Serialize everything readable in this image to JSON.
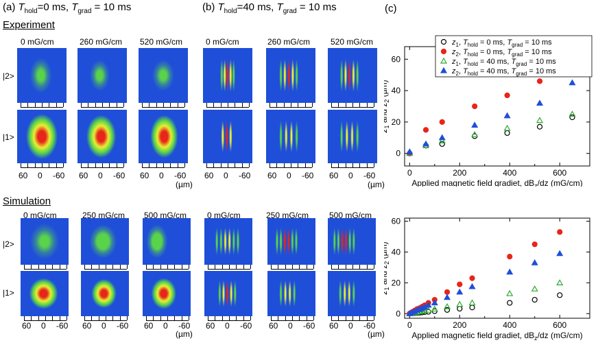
{
  "labels": {
    "panel_a_prefix": "(a) ",
    "panel_a_thold": "=0 ms, ",
    "panel_a_tgrad": " = 10 ms",
    "panel_b_prefix": "(b) ",
    "panel_b_thold": "=40 ms, ",
    "panel_b_tgrad": " = 10 ms",
    "panel_c": "(c)",
    "T": "T",
    "sub_hold": "hold",
    "sub_grad": "grad",
    "experiment": "Experiment",
    "simulation": "Simulation",
    "state_2": "|2>",
    "state_1": "|1>",
    "um": "(µm)",
    "x_ticks": [
      "60",
      "0",
      "-60"
    ]
  },
  "experiment_fields_a": [
    "0 mG/cm",
    "260 mG/cm",
    "520 mG/cm"
  ],
  "experiment_fields_b": [
    "0 mG/cm",
    "260 mG/cm",
    "520 mG/cm"
  ],
  "simulation_fields_a": [
    "0 mG/cm",
    "250 mG/cm",
    "500 mG/cm"
  ],
  "simulation_fields_b": [
    "0 mG/cm",
    "250 mG/cm",
    "500 mG/cm"
  ],
  "colors": {
    "background_blue": "#1f4fd8",
    "green": "#59d34a",
    "yellow": "#e8ee33",
    "red": "#e8251a",
    "series_red": "#e8251a",
    "series_blue": "#1f4fd8",
    "series_green": "#2faa2f",
    "series_black": "#000000"
  },
  "chart_data": [
    {
      "type": "scatter",
      "title": "Experiment",
      "xlabel": "Applied magnetic field gradiet, dB",
      "xlabel_sub": "z",
      "xlabel_tail": "/dz (mG/cm)",
      "ylabel": "z",
      "ylabel_sub1": "1",
      "ylabel_mid": " and z",
      "ylabel_sub2": "2",
      "ylabel_tail": " (µm)",
      "xlim": [
        -20,
        720
      ],
      "ylim": [
        -8,
        68
      ],
      "xticks": [
        0,
        200,
        400,
        600
      ],
      "yticks": [
        0,
        20,
        40,
        60
      ],
      "legend_position": "top-right",
      "series": [
        {
          "name": "z1, Thold = 0 ms, Tgrad = 10 ms",
          "marker": "circle-open",
          "color": "#000000",
          "x": [
            0,
            65,
            130,
            260,
            390,
            520,
            650
          ],
          "y": [
            0,
            5,
            6,
            11,
            13,
            17,
            23
          ]
        },
        {
          "name": "z2, Thold = 0 ms, Tgrad = 10 ms",
          "marker": "circle-filled",
          "color": "#e8251a",
          "x": [
            0,
            65,
            130,
            260,
            390,
            520,
            650
          ],
          "y": [
            0,
            15,
            20,
            30,
            37,
            46,
            51
          ]
        },
        {
          "name": "z1, Thold = 40 ms, Tgrad = 10 ms",
          "marker": "triangle-open",
          "color": "#2faa2f",
          "x": [
            0,
            65,
            130,
            260,
            390,
            520,
            650
          ],
          "y": [
            0,
            5,
            8,
            12,
            16,
            21,
            25
          ]
        },
        {
          "name": "z2, Thold = 40 ms, Tgrad = 10 ms",
          "marker": "triangle-filled",
          "color": "#1f4fd8",
          "x": [
            0,
            65,
            130,
            260,
            390,
            520,
            650
          ],
          "y": [
            1,
            6,
            10,
            18,
            24,
            32,
            45
          ]
        }
      ],
      "legend": [
        {
          "z": "z",
          "zsub": "1",
          "hold_val": " = 0 ms, ",
          "grad_val": " = 10 ms"
        },
        {
          "z": "z",
          "zsub": "2",
          "hold_val": " = 0 ms, ",
          "grad_val": " = 10 ms"
        },
        {
          "z": "z",
          "zsub": "1",
          "hold_val": " = 40 ms, ",
          "grad_val": " = 10 ms"
        },
        {
          "z": "z",
          "zsub": "2",
          "hold_val": " = 40 ms, ",
          "grad_val": " = 10 ms"
        }
      ]
    },
    {
      "type": "scatter",
      "title": "Simulation",
      "xlabel": "Applied magnetic field gradiet, dB",
      "xlabel_sub": "z",
      "xlabel_tail": "/dz (mG/cm)",
      "ylabel": "z",
      "ylabel_sub1": "1",
      "ylabel_mid": " and z",
      "ylabel_sub2": "2",
      "ylabel_tail": " (µm)",
      "xlim": [
        -20,
        720
      ],
      "ylim": [
        -3,
        62
      ],
      "xticks": [
        0,
        200,
        400,
        600
      ],
      "yticks": [
        0,
        20,
        40,
        60
      ],
      "series": [
        {
          "name": "z1, Thold = 0 ms",
          "marker": "circle-open",
          "color": "#000000",
          "x": [
            0,
            10,
            20,
            30,
            40,
            50,
            60,
            75,
            100,
            150,
            200,
            250,
            400,
            500,
            600
          ],
          "y": [
            0,
            0.2,
            0.3,
            0.5,
            0.6,
            0.8,
            1,
            1.2,
            1.6,
            2.4,
            3.2,
            4,
            7,
            9,
            12
          ]
        },
        {
          "name": "z2, Thold = 0 ms",
          "marker": "circle-filled",
          "color": "#e8251a",
          "x": [
            0,
            10,
            20,
            30,
            40,
            50,
            60,
            75,
            100,
            150,
            200,
            250,
            400,
            500,
            600
          ],
          "y": [
            0,
            1,
            2,
            3,
            3.6,
            4.5,
            5.4,
            7,
            9,
            14,
            19,
            23,
            37,
            45,
            53
          ]
        },
        {
          "name": "z1, Thold = 40 ms",
          "marker": "triangle-open",
          "color": "#2faa2f",
          "x": [
            0,
            10,
            20,
            30,
            40,
            50,
            60,
            75,
            100,
            150,
            200,
            250,
            400,
            500,
            600
          ],
          "y": [
            0,
            0.3,
            0.6,
            0.9,
            1.2,
            1.5,
            1.8,
            2.2,
            3,
            4.5,
            6,
            7,
            13,
            16,
            20
          ]
        },
        {
          "name": "z2, Thold = 40 ms",
          "marker": "triangle-filled",
          "color": "#1f4fd8",
          "x": [
            0,
            10,
            20,
            30,
            40,
            50,
            60,
            75,
            100,
            150,
            200,
            250,
            400,
            500,
            600
          ],
          "y": [
            0,
            0.8,
            1.5,
            2.2,
            2.9,
            3.6,
            4.3,
            5.5,
            7,
            10.5,
            14,
            17.5,
            27,
            33,
            39
          ]
        }
      ]
    }
  ]
}
